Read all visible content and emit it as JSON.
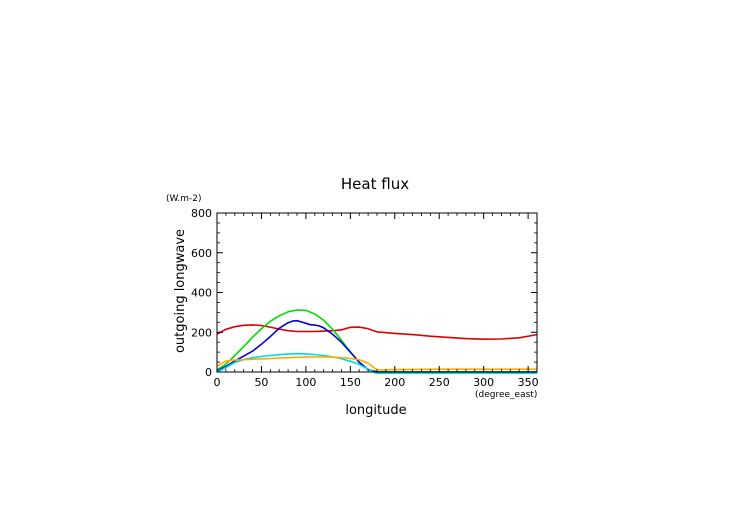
{
  "chart_data": {
    "type": "line",
    "title": "Heat flux",
    "xlabel": "longitude",
    "ylabel": "outgoing longwave",
    "x_unit": "(degree_east)",
    "y_unit": "(W.m-2)",
    "xlim": [
      0,
      360
    ],
    "ylim": [
      0,
      800
    ],
    "x_ticks": [
      0,
      50,
      100,
      150,
      200,
      250,
      300,
      350
    ],
    "y_ticks": [
      0,
      200,
      400,
      600,
      800
    ],
    "x_minor_step": 10,
    "y_minor_step": 50,
    "grid": false,
    "series": [
      {
        "color": "#dd0000",
        "x": [
          0,
          10,
          20,
          30,
          40,
          50,
          60,
          70,
          80,
          90,
          100,
          110,
          120,
          130,
          140,
          150,
          160,
          170,
          180,
          200,
          220,
          240,
          260,
          280,
          300,
          320,
          340,
          360
        ],
        "y": [
          190,
          215,
          228,
          235,
          237,
          234,
          226,
          216,
          208,
          204,
          204,
          204,
          206,
          208,
          212,
          225,
          226,
          218,
          202,
          194,
          188,
          180,
          174,
          168,
          165,
          166,
          172,
          188
        ]
      },
      {
        "color": "#00dd00",
        "x": [
          0,
          10,
          20,
          30,
          40,
          50,
          60,
          70,
          80,
          90,
          100,
          110,
          120,
          130,
          140,
          150,
          160,
          170,
          180,
          200,
          250,
          300,
          360
        ],
        "y": [
          10,
          40,
          82,
          128,
          175,
          218,
          255,
          283,
          303,
          312,
          310,
          292,
          260,
          215,
          160,
          102,
          48,
          12,
          0,
          0,
          0,
          0,
          0
        ]
      },
      {
        "color": "#0000dd",
        "x": [
          0,
          10,
          20,
          30,
          40,
          50,
          60,
          70,
          80,
          85,
          90,
          95,
          100,
          105,
          110,
          115,
          120,
          130,
          140,
          150,
          160,
          170,
          180,
          200,
          250,
          300,
          360
        ],
        "y": [
          5,
          28,
          55,
          80,
          105,
          140,
          178,
          220,
          248,
          256,
          258,
          252,
          245,
          238,
          236,
          232,
          222,
          190,
          150,
          100,
          50,
          12,
          0,
          0,
          0,
          0,
          0
        ]
      },
      {
        "color": "#00dddd",
        "x": [
          0,
          10,
          20,
          30,
          40,
          50,
          60,
          70,
          80,
          90,
          100,
          110,
          120,
          130,
          140,
          150,
          160,
          170,
          180,
          200,
          250,
          300,
          360
        ],
        "y": [
          0,
          22,
          48,
          62,
          72,
          78,
          83,
          87,
          90,
          92,
          91,
          88,
          83,
          76,
          67,
          54,
          38,
          14,
          -8,
          -8,
          -8,
          -8,
          -8
        ]
      },
      {
        "color": "#ffaa00",
        "x": [
          0,
          10,
          20,
          30,
          40,
          50,
          60,
          70,
          80,
          90,
          100,
          110,
          120,
          130,
          140,
          150,
          160,
          170,
          180,
          200,
          250,
          300,
          360
        ],
        "y": [
          30,
          55,
          60,
          62,
          64,
          66,
          68,
          70,
          72,
          74,
          75,
          76,
          76,
          75,
          72,
          68,
          62,
          45,
          10,
          12,
          14,
          14,
          14
        ]
      }
    ]
  }
}
